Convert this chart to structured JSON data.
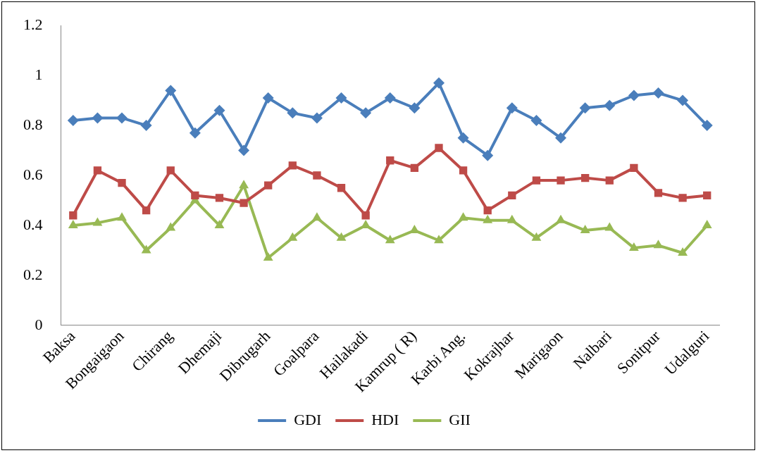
{
  "chart_data": {
    "type": "line",
    "categories": [
      "Baksa",
      null,
      "Bongaigaon",
      null,
      "Chirang",
      null,
      "Dhemaji",
      null,
      "Dibrugarh",
      null,
      "Goalpara",
      null,
      "Hailakadi",
      null,
      "Kamrup ( R)",
      null,
      "Karbi Ang.",
      null,
      "Kokrajhar",
      null,
      "Marigaon",
      null,
      "Nalbari",
      null,
      "Sonitpur",
      null,
      "Udalguri"
    ],
    "series": [
      {
        "name": "GDI",
        "color": "#4a7ebb",
        "marker": "diamond",
        "values": [
          0.82,
          0.83,
          0.83,
          0.8,
          0.94,
          0.77,
          0.86,
          0.7,
          0.91,
          0.85,
          0.83,
          0.91,
          0.85,
          0.91,
          0.87,
          0.97,
          0.75,
          0.68,
          0.87,
          0.82,
          0.75,
          0.87,
          0.88,
          0.92,
          0.93,
          0.9,
          0.8
        ]
      },
      {
        "name": "HDI",
        "color": "#be4b48",
        "marker": "square",
        "values": [
          0.44,
          0.62,
          0.57,
          0.46,
          0.62,
          0.52,
          0.51,
          0.49,
          0.56,
          0.64,
          0.6,
          0.55,
          0.44,
          0.66,
          0.63,
          0.71,
          0.62,
          0.46,
          0.52,
          0.58,
          0.58,
          0.59,
          0.58,
          0.63,
          0.53,
          0.51,
          0.52
        ]
      },
      {
        "name": "GII",
        "color": "#98b954",
        "marker": "triangle",
        "values": [
          0.4,
          0.41,
          0.43,
          0.3,
          0.39,
          0.5,
          0.4,
          0.56,
          0.27,
          0.35,
          0.43,
          0.35,
          0.4,
          0.34,
          0.38,
          0.34,
          0.43,
          0.42,
          0.42,
          0.35,
          0.42,
          0.38,
          0.39,
          0.31,
          0.32,
          0.29,
          0.4
        ]
      }
    ],
    "ylim": [
      0,
      1.2
    ],
    "yticks": [
      0,
      0.2,
      0.4,
      0.6,
      0.8,
      1,
      1.2
    ],
    "grid": false,
    "legend": "bottom"
  }
}
